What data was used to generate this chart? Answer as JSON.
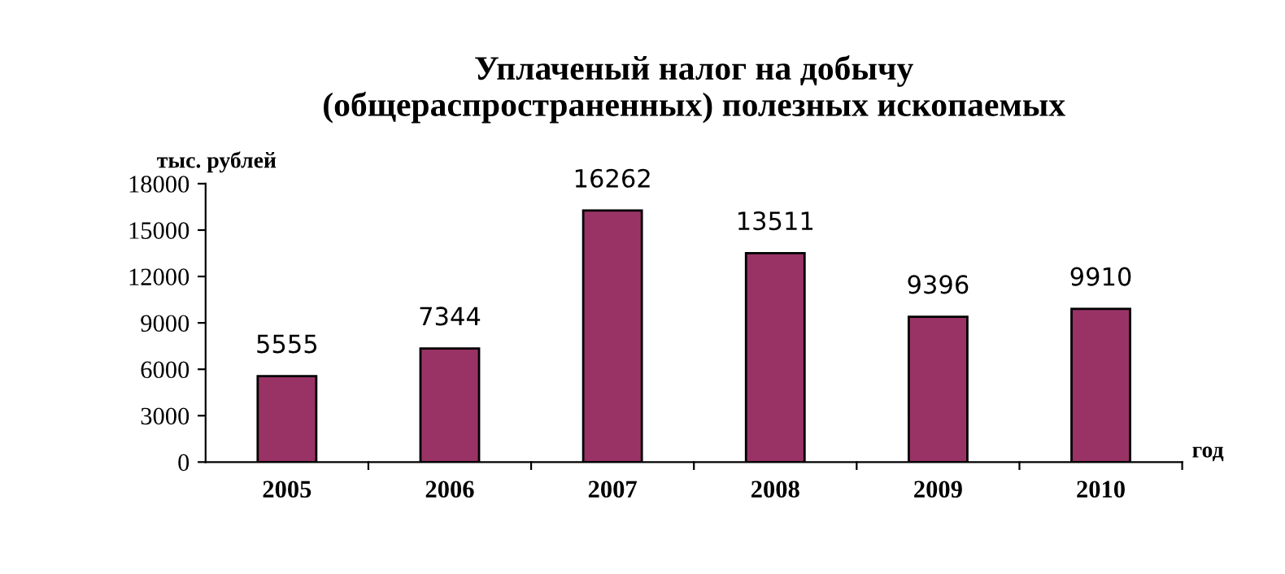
{
  "chart_data": {
    "type": "bar",
    "title": "Уплаченый налог на добычу\n(общераспространенных) полезных ископаемых",
    "ylabel": "тыс. рублей",
    "xlabel": "год",
    "categories": [
      "2005",
      "2006",
      "2007",
      "2008",
      "2009",
      "2010"
    ],
    "values": [
      5555,
      7344,
      16262,
      13511,
      9396,
      9910
    ],
    "color": "#993366",
    "ylim": [
      0,
      18000
    ],
    "yticks": [
      0,
      3000,
      6000,
      9000,
      12000,
      15000,
      18000
    ],
    "grid": false,
    "data_labels": true
  }
}
